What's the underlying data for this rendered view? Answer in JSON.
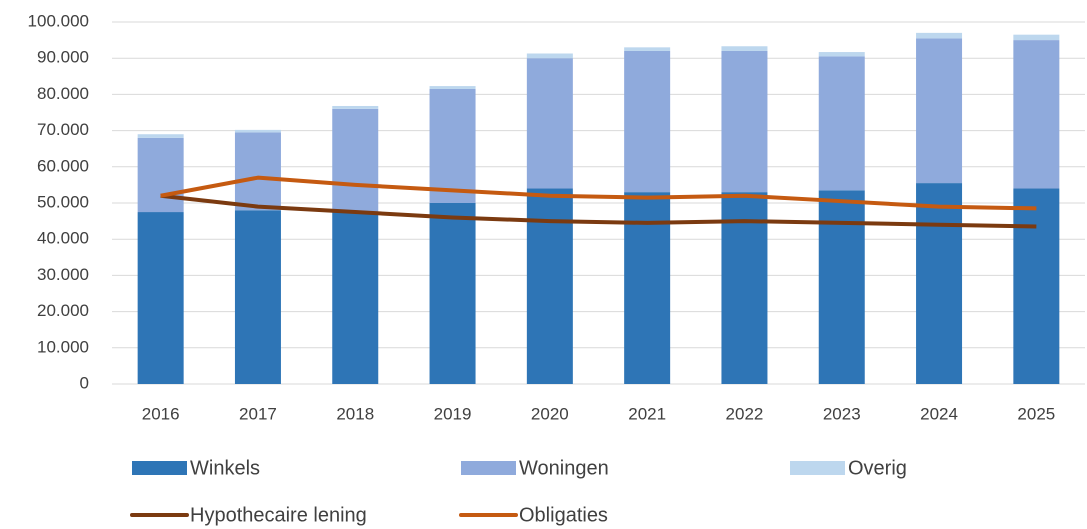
{
  "chart_data": {
    "type": "bar",
    "categories": [
      "2016",
      "2017",
      "2018",
      "2019",
      "2020",
      "2021",
      "2022",
      "2023",
      "2024",
      "2025"
    ],
    "series": [
      {
        "name": "Winkels",
        "type": "bar",
        "color": "#2e75b6",
        "values": [
          47500,
          48000,
          47500,
          50000,
          54000,
          53000,
          53000,
          53500,
          55500,
          54000
        ]
      },
      {
        "name": "Woningen",
        "type": "bar",
        "color": "#8faadc",
        "values": [
          20500,
          21500,
          28500,
          31500,
          36000,
          39000,
          39000,
          37000,
          40000,
          41000
        ]
      },
      {
        "name": "Overig",
        "type": "bar",
        "color": "#bdd7ee",
        "values": [
          1000,
          700,
          800,
          800,
          1300,
          1000,
          1300,
          1200,
          1500,
          1500
        ]
      },
      {
        "name": "Hypothecaire lening",
        "type": "line",
        "color": "#7b3a10",
        "values": [
          52000,
          49000,
          47500,
          46000,
          45000,
          44500,
          45000,
          44500,
          44000,
          43500
        ]
      },
      {
        "name": "Obligaties",
        "type": "line",
        "color": "#c55a11",
        "values": [
          52000,
          57000,
          55000,
          53500,
          52000,
          51500,
          52000,
          50500,
          49000,
          48500
        ]
      }
    ],
    "ylim": [
      0,
      100000
    ],
    "yticks": [
      0,
      {
        "value": 10000,
        "label": "10.000"
      },
      {
        "value": 20000,
        "label": "20.000"
      },
      {
        "value": 30000,
        "label": "30.000"
      },
      {
        "value": 40000,
        "label": "40.000"
      },
      {
        "value": 50000,
        "label": "50.000"
      },
      {
        "value": 60000,
        "label": "60.000"
      },
      {
        "value": 70000,
        "label": "70.000"
      },
      {
        "value": 80000,
        "label": "80.000"
      },
      {
        "value": 90000,
        "label": "90.000"
      },
      {
        "value": 100000,
        "label": "100.000"
      }
    ],
    "grid": true,
    "legend": "bottom"
  }
}
